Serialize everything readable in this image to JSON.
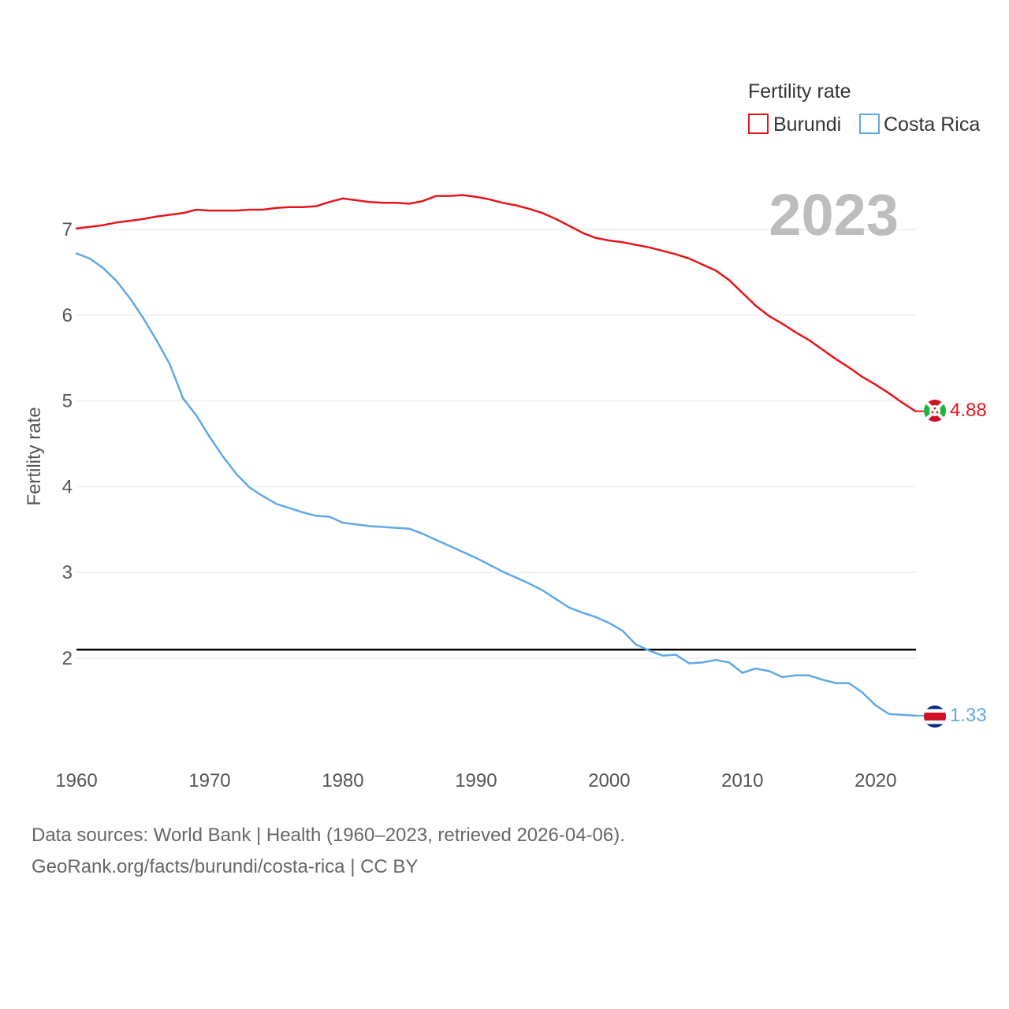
{
  "chart_data": {
    "type": "line",
    "title": "",
    "watermark_year": "2023",
    "xlabel": "",
    "ylabel": "Fertility rate",
    "xlim": [
      1960,
      2023
    ],
    "ylim": [
      1.0,
      7.5
    ],
    "x_ticks": [
      1960,
      1970,
      1980,
      1990,
      2000,
      2010,
      2020
    ],
    "y_ticks": [
      2,
      3,
      4,
      5,
      6,
      7
    ],
    "legend": {
      "title": "Fertility rate",
      "position": "top-right"
    },
    "reference_line": {
      "y": 2.1,
      "color": "#000000"
    },
    "grid": true,
    "x": [
      1960,
      1961,
      1962,
      1963,
      1964,
      1965,
      1966,
      1967,
      1968,
      1969,
      1970,
      1971,
      1972,
      1973,
      1974,
      1975,
      1976,
      1977,
      1978,
      1979,
      1980,
      1981,
      1982,
      1983,
      1984,
      1985,
      1986,
      1987,
      1988,
      1989,
      1990,
      1991,
      1992,
      1993,
      1994,
      1995,
      1996,
      1997,
      1998,
      1999,
      2000,
      2001,
      2002,
      2003,
      2004,
      2005,
      2006,
      2007,
      2008,
      2009,
      2010,
      2011,
      2012,
      2013,
      2014,
      2015,
      2016,
      2017,
      2018,
      2019,
      2020,
      2021,
      2022,
      2023
    ],
    "series": [
      {
        "name": "Burundi",
        "color": "#e8141b",
        "end_label": "4.88",
        "flag": "burundi-flag-icon",
        "values": [
          7.01,
          7.03,
          7.05,
          7.08,
          7.1,
          7.12,
          7.15,
          7.17,
          7.19,
          7.23,
          7.22,
          7.22,
          7.22,
          7.23,
          7.23,
          7.25,
          7.26,
          7.26,
          7.27,
          7.32,
          7.36,
          7.34,
          7.32,
          7.31,
          7.31,
          7.3,
          7.33,
          7.39,
          7.39,
          7.4,
          7.38,
          7.35,
          7.31,
          7.28,
          7.24,
          7.19,
          7.12,
          7.04,
          6.96,
          6.9,
          6.87,
          6.85,
          6.82,
          6.79,
          6.75,
          6.71,
          6.66,
          6.59,
          6.52,
          6.41,
          6.26,
          6.11,
          5.99,
          5.9,
          5.8,
          5.71,
          5.6,
          5.49,
          5.39,
          5.28,
          5.19,
          5.09,
          4.98,
          4.88
        ]
      },
      {
        "name": "Costa Rica",
        "color": "#5fa8e8",
        "end_label": "1.33",
        "flag": "costa-rica-flag-icon",
        "values": [
          6.72,
          6.66,
          6.55,
          6.4,
          6.2,
          5.97,
          5.71,
          5.43,
          5.03,
          4.83,
          4.58,
          4.35,
          4.15,
          3.99,
          3.89,
          3.8,
          3.75,
          3.7,
          3.66,
          3.65,
          3.58,
          3.56,
          3.54,
          3.53,
          3.52,
          3.51,
          3.45,
          3.38,
          3.31,
          3.24,
          3.17,
          3.09,
          3.01,
          2.94,
          2.87,
          2.79,
          2.69,
          2.59,
          2.53,
          2.48,
          2.41,
          2.32,
          2.16,
          2.09,
          2.03,
          2.04,
          1.94,
          1.95,
          1.98,
          1.95,
          1.83,
          1.88,
          1.85,
          1.78,
          1.8,
          1.8,
          1.75,
          1.71,
          1.71,
          1.6,
          1.45,
          1.35,
          1.34,
          1.33
        ]
      }
    ]
  },
  "footer": {
    "line1": "Data sources: World Bank | Health (1960–2023, retrieved 2026-04-06).",
    "line2": "GeoRank.org/facts/burundi/costa-rica | CC BY"
  }
}
